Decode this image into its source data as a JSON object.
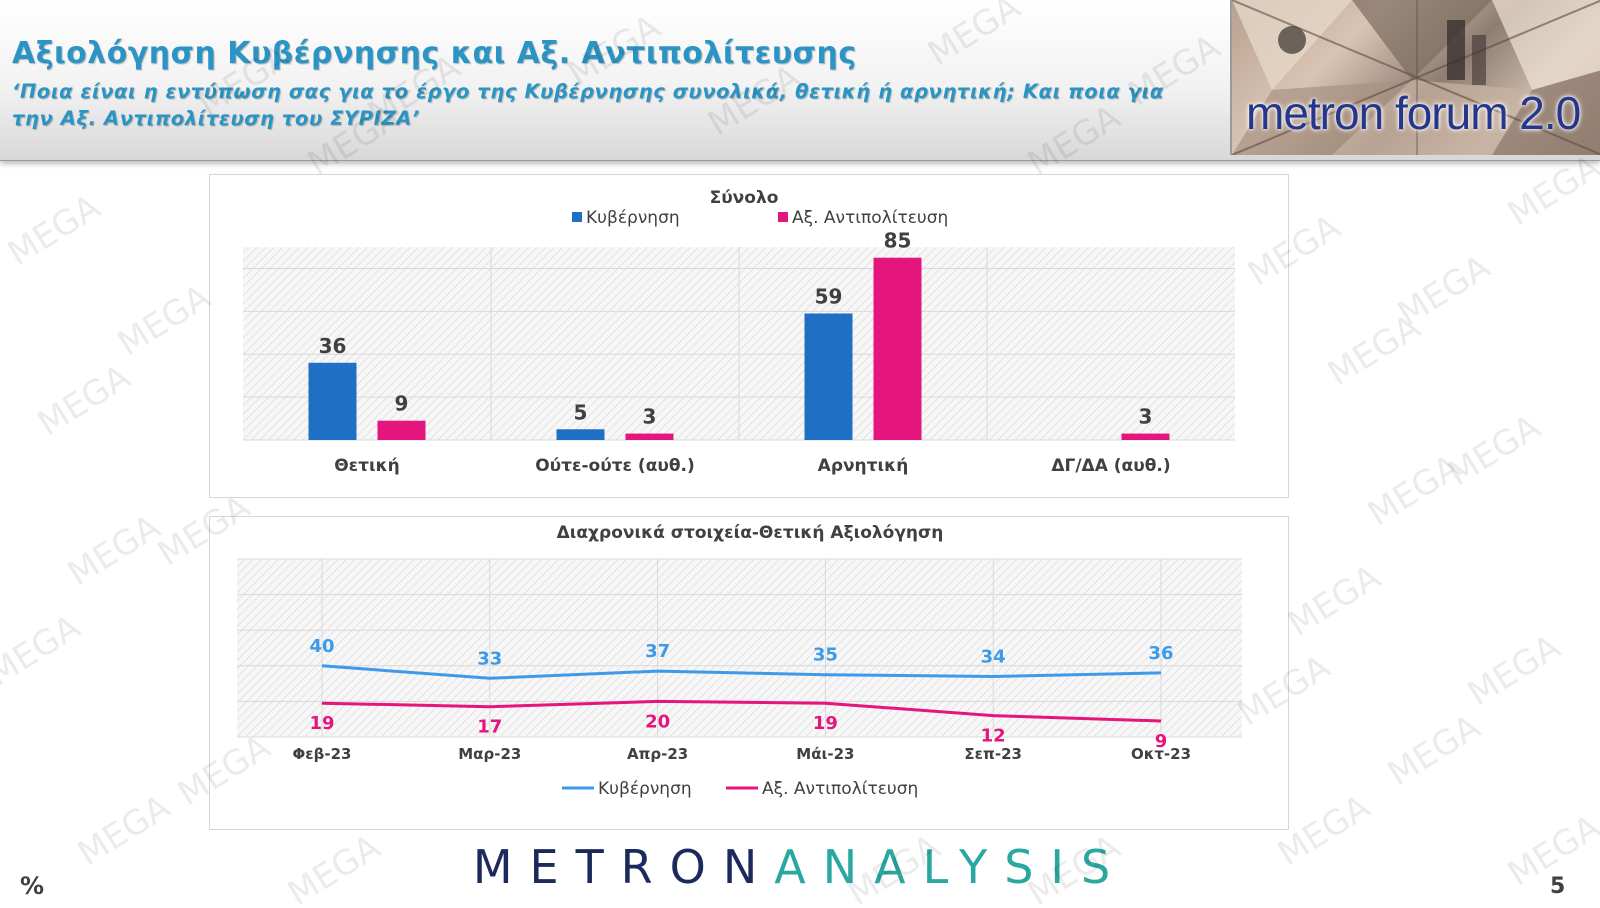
{
  "header": {
    "title": "Αξιολόγηση Κυβέρνησης και Αξ. Αντιπολίτευσης",
    "subtitle": "‘Ποια είναι η εντύπωση σας για το έργο της Κυβέρνησης συνολικά, θετική ή αρνητική; Και ποια για την Αξ. Αντιπολίτευση του ΣΥΡΙΖΑ’",
    "logo_text": "metron forum 2.0"
  },
  "colors": {
    "government": "#1f6fc5",
    "opposition": "#e5157e",
    "gov_line": "#3d9ae8",
    "opp_line": "#e5157e"
  },
  "chart_data": [
    {
      "type": "bar",
      "title": "Σύνολο",
      "categories": [
        "Θετική",
        "Ούτε-ούτε (αυθ.)",
        "Αρνητική",
        "ΔΓ/ΔΑ (αυθ.)"
      ],
      "series": [
        {
          "name": "Κυβέρνηση",
          "values": [
            36,
            5,
            59,
            null
          ]
        },
        {
          "name": "Αξ. Αντιπολίτευση",
          "values": [
            9,
            3,
            85,
            3
          ]
        }
      ],
      "ylim": [
        0,
        90
      ],
      "legend": "top",
      "grid": true
    },
    {
      "type": "line",
      "title": "Διαχρονικά στοιχεία-Θετική Αξιολόγηση",
      "x": [
        "Φεβ-23",
        "Μαρ-23",
        "Απρ-23",
        "Μάι-23",
        "Σεπ-23",
        "Οκτ-23"
      ],
      "series": [
        {
          "name": "Κυβέρνηση",
          "values": [
            40,
            33,
            37,
            35,
            34,
            36
          ]
        },
        {
          "name": "Αξ. Αντιπολίτευση",
          "values": [
            19,
            17,
            20,
            19,
            12,
            9
          ]
        }
      ],
      "ylim": [
        0,
        100
      ],
      "legend": "bottom",
      "grid": true
    }
  ],
  "footer": {
    "brand_a": "METRON",
    "brand_b": "ANALYSIS",
    "unit": "%",
    "page_number": "5"
  },
  "watermark_text": "MEGA"
}
